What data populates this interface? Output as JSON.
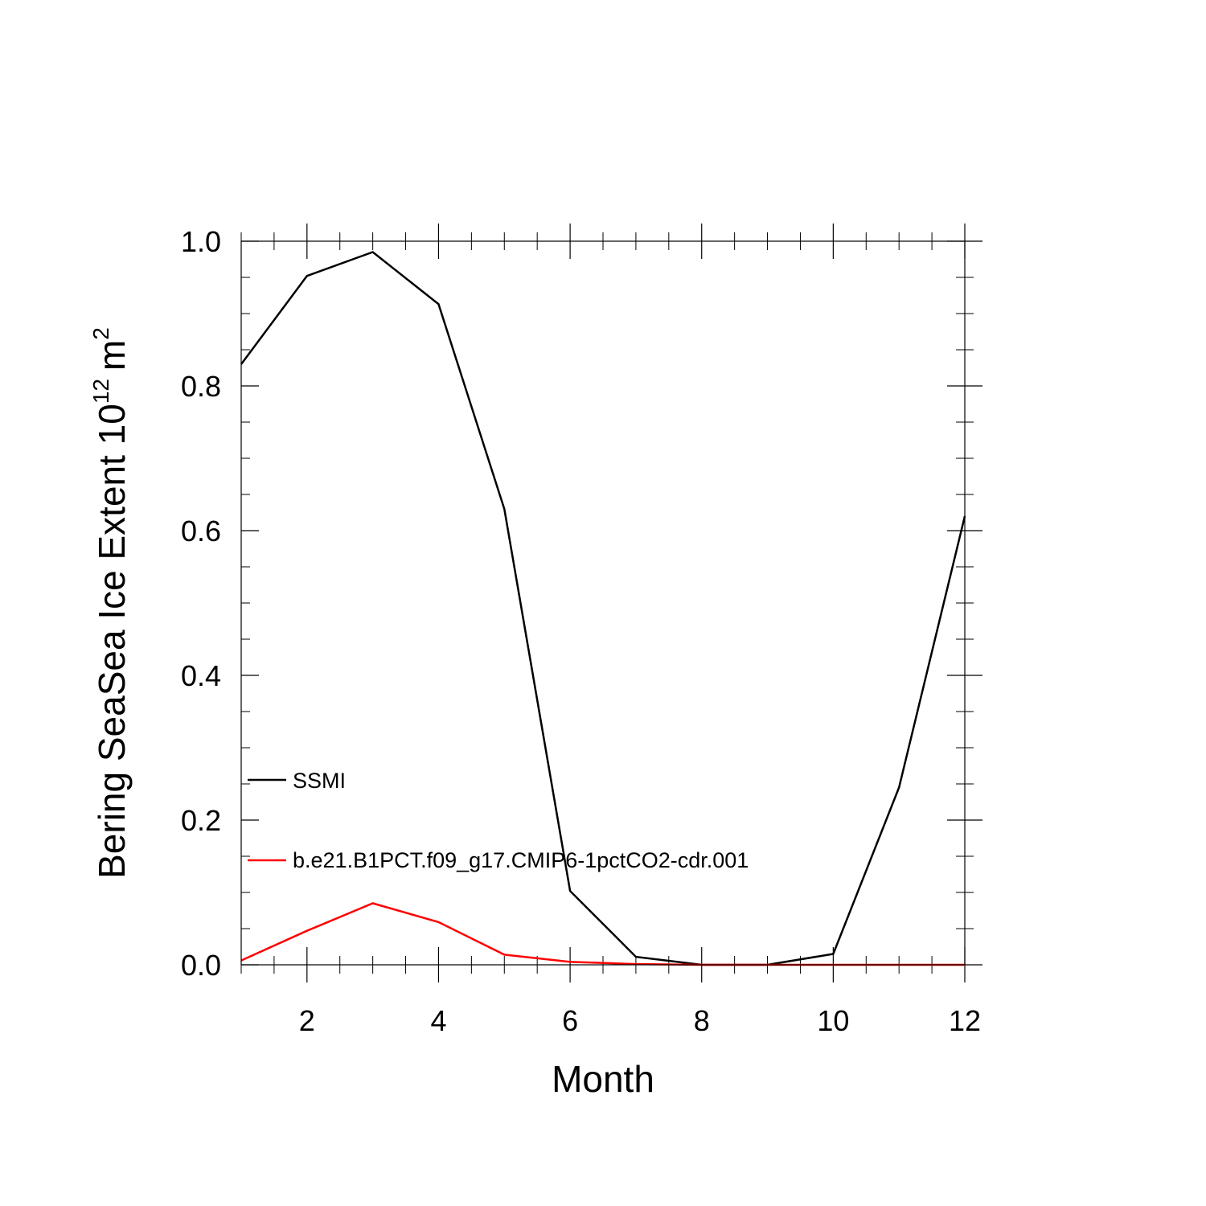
{
  "chart_data": {
    "type": "line",
    "title": "",
    "xlabel": "Month",
    "ylabel": "Bering SeaSea Ice Extent 10",
    "ylabel_superscript": "12",
    "ylabel_unit": "m",
    "ylabel_unit_superscript": "2",
    "xlim": [
      1,
      12
    ],
    "ylim": [
      0.0,
      1.0
    ],
    "x_ticks": [
      2,
      4,
      6,
      8,
      10,
      12
    ],
    "x_tick_labels": [
      "2",
      "4",
      "6",
      "8",
      "10",
      "12"
    ],
    "y_ticks": [
      0.0,
      0.2,
      0.4,
      0.6,
      0.8,
      1.0
    ],
    "y_tick_labels": [
      "0.0",
      "0.2",
      "0.4",
      "0.6",
      "0.8",
      "1.0"
    ],
    "grid": false,
    "legend_position": "lower-left",
    "x": [
      1,
      2,
      3,
      4,
      5,
      6,
      7,
      8,
      9,
      10,
      11,
      12
    ],
    "series": [
      {
        "name": "SSMI",
        "color": "#000000",
        "values": [
          0.83,
          0.952,
          0.985,
          0.913,
          0.63,
          0.102,
          0.011,
          0.0,
          0.0,
          0.015,
          0.245,
          0.62
        ]
      },
      {
        "name": "b.e21.B1PCT.f09_g17.CMIP6-1pctCO2-cdr.001",
        "color": "#ff0000",
        "values": [
          0.006,
          0.047,
          0.085,
          0.059,
          0.014,
          0.004,
          0.001,
          0.0,
          0.0,
          0.0,
          0.0,
          0.0
        ]
      }
    ]
  }
}
